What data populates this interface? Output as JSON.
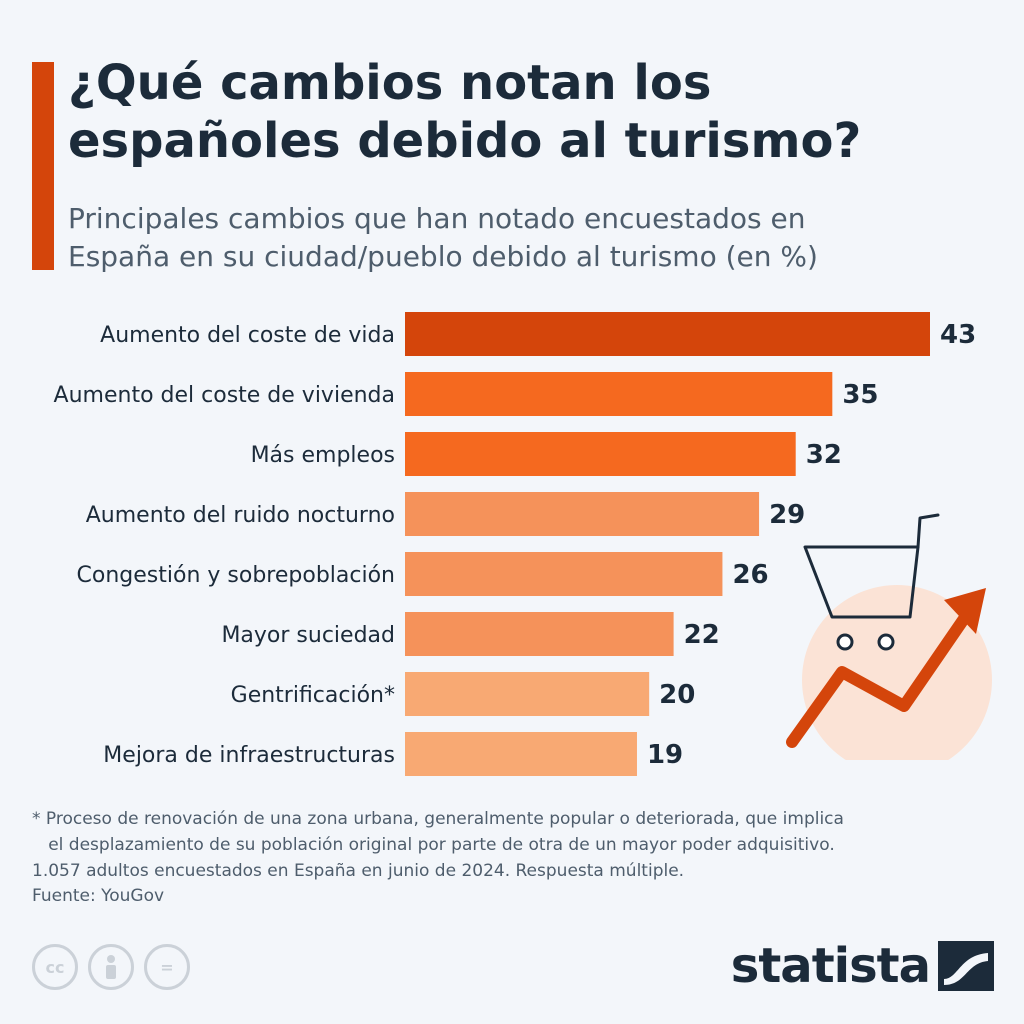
{
  "header": {
    "title_line1": "¿Qué cambios notan los",
    "title_line2": "españoles debido al turismo?",
    "subtitle_line1": "Principales cambios que han notado encuestados en",
    "subtitle_line2": "España en su ciudad/pueblo debido al turismo (en %)"
  },
  "chart_data": {
    "type": "bar",
    "orientation": "horizontal",
    "title": "¿Qué cambios notan los españoles debido al turismo?",
    "subtitle": "Principales cambios que han notado encuestados en España en su ciudad/pueblo debido al turismo (en %)",
    "categories": [
      "Aumento del coste de vida",
      "Aumento del coste de vivienda",
      "Más empleos",
      "Aumento del ruido nocturno",
      "Congestión y sobrepoblación",
      "Mayor suciedad",
      "Gentrificación*",
      "Mejora de infraestructuras"
    ],
    "values": [
      43,
      35,
      32,
      29,
      26,
      22,
      20,
      19
    ],
    "colors": [
      "#d4450b",
      "#f5691f",
      "#f5691f",
      "#f5925a",
      "#f5925a",
      "#f5925a",
      "#f8a973",
      "#f8a973"
    ],
    "xlim": [
      0,
      43
    ],
    "grid": false,
    "legend": "none"
  },
  "footnote": {
    "line1": "* Proceso de renovación de una zona urbana, generalmente popular o deteriorada, que implica",
    "line2": "   el desplazamiento de su población original por parte de otra de un mayor poder adquisitivo.",
    "line3": "1.057 adultos encuestados en España en junio de 2024. Respuesta múltiple."
  },
  "source": "Fuente: YouGov",
  "branding": {
    "logo_text": "statista",
    "license_icons": [
      "cc-icon",
      "attribution-icon",
      "no-derivatives-icon"
    ],
    "license_cc_text": "cc",
    "license_nd_text": "="
  },
  "colors": {
    "accent": "#d4450b",
    "background": "#f3f6fa",
    "text": "#1c2b3a",
    "illustration_circle": "#fbe3d6"
  }
}
